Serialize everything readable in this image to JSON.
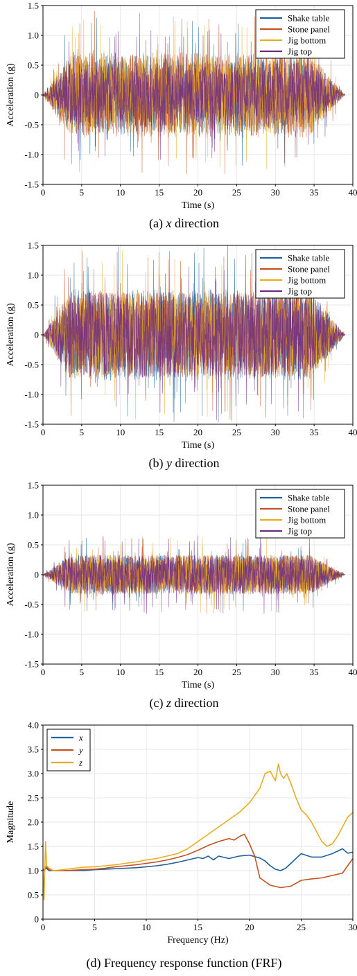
{
  "colors": {
    "shake_table": "#1f5f9a",
    "stone_panel": "#c4511f",
    "jig_bottom": "#e8ac22",
    "jig_top": "#6e2a82",
    "x": "#1f5f9a",
    "y": "#c4511f",
    "z": "#e8ac22",
    "grid": "#dedede"
  },
  "chart_data": [
    {
      "type": "line",
      "caption_prefix": "(a) ",
      "caption_var": "x",
      "caption_suffix": " direction",
      "xlabel": "Time (s)",
      "ylabel": "Acceleration (g)",
      "xlim": [
        0,
        40
      ],
      "ylim": [
        -1.5,
        1.5
      ],
      "xticks": [
        0,
        5,
        10,
        15,
        20,
        25,
        30,
        35,
        40
      ],
      "yticks": [
        -1.5,
        -1.0,
        -0.5,
        0,
        0.5,
        1.0,
        1.5
      ],
      "ytick_labels": [
        "-1.5",
        "-1.0",
        "-0.5",
        "0",
        "0.5",
        "1.0",
        "1.5"
      ],
      "grid": true,
      "legend_position": "top-right",
      "series": [
        {
          "name": "Shake table",
          "color_key": "shake_table",
          "amplitude_peak": 1.2
        },
        {
          "name": "Stone panel",
          "color_key": "stone_panel",
          "amplitude_peak": 1.3
        },
        {
          "name": "Jig bottom",
          "color_key": "jig_bottom",
          "amplitude_peak": 1.2
        },
        {
          "name": "Jig top",
          "color_key": "jig_top",
          "amplitude_peak": 1.0
        }
      ],
      "signal_duration_s": 39
    },
    {
      "type": "line",
      "caption_prefix": "(b) ",
      "caption_var": "y",
      "caption_suffix": " direction",
      "xlabel": "Time (s)",
      "ylabel": "Acceleration (g)",
      "xlim": [
        0,
        40
      ],
      "ylim": [
        -1.5,
        1.5
      ],
      "xticks": [
        0,
        5,
        10,
        15,
        20,
        25,
        30,
        35,
        40
      ],
      "yticks": [
        -1.5,
        -1.0,
        -0.5,
        0,
        0.5,
        1.0,
        1.5
      ],
      "ytick_labels": [
        "-1.5",
        "-1.0",
        "-0.5",
        "0",
        "0.5",
        "1.0",
        "1.5"
      ],
      "grid": true,
      "legend_position": "top-right",
      "series": [
        {
          "name": "Shake table",
          "color_key": "shake_table",
          "amplitude_peak": 1.4
        },
        {
          "name": "Stone panel",
          "color_key": "stone_panel",
          "amplitude_peak": 1.3
        },
        {
          "name": "Jig bottom",
          "color_key": "jig_bottom",
          "amplitude_peak": 1.3
        },
        {
          "name": "Jig top",
          "color_key": "jig_top",
          "amplitude_peak": 1.3
        }
      ],
      "signal_duration_s": 39
    },
    {
      "type": "line",
      "caption_prefix": "(c) ",
      "caption_var": "z",
      "caption_suffix": " direction",
      "xlabel": "Time (s)",
      "ylabel": "Acceleration (g)",
      "xlim": [
        0,
        40
      ],
      "ylim": [
        -1.5,
        1.5
      ],
      "xticks": [
        0,
        5,
        10,
        15,
        20,
        25,
        30,
        35,
        40
      ],
      "yticks": [
        -1.5,
        -1.0,
        -0.5,
        0,
        0.5,
        1.0,
        1.5
      ],
      "ytick_labels": [
        "-1.5",
        "-1.0",
        "-0.5",
        "0",
        "0.5",
        "1.0",
        "1.5"
      ],
      "grid": true,
      "legend_position": "top-right",
      "series": [
        {
          "name": "Shake table",
          "color_key": "shake_table",
          "amplitude_peak": 0.6
        },
        {
          "name": "Stone panel",
          "color_key": "stone_panel",
          "amplitude_peak": 0.6
        },
        {
          "name": "Jig bottom",
          "color_key": "jig_bottom",
          "amplitude_peak": 0.6
        },
        {
          "name": "Jig top",
          "color_key": "jig_top",
          "amplitude_peak": 0.6
        }
      ],
      "signal_duration_s": 39
    },
    {
      "type": "line",
      "caption_prefix": "(d) Frequency response function (FRF)",
      "caption_var": "",
      "caption_suffix": "",
      "xlabel": "Frequency (Hz)",
      "ylabel": "Magnitude",
      "xlim": [
        0,
        30
      ],
      "ylim": [
        0,
        4.0
      ],
      "xticks": [
        0,
        5,
        10,
        15,
        20,
        25,
        30
      ],
      "yticks": [
        0,
        0.5,
        1.0,
        1.5,
        2.0,
        2.5,
        3.0,
        3.5,
        4.0
      ],
      "ytick_labels": [
        "0",
        "0.5",
        "1.0",
        "1.5",
        "2.0",
        "2.5",
        "3.0",
        "3.5",
        "4.0"
      ],
      "grid": true,
      "legend_position": "top-left",
      "series": [
        {
          "name": "x",
          "color_key": "x",
          "x": [
            0,
            0.3,
            0.6,
            1,
            2,
            3,
            4,
            5,
            6,
            7,
            8,
            9,
            10,
            11,
            12,
            13,
            14,
            15,
            15.5,
            16,
            16.5,
            17,
            18,
            19,
            20,
            21,
            21.5,
            22,
            22.5,
            23,
            23.5,
            24,
            25,
            26,
            27,
            28,
            29,
            29.5,
            30
          ],
          "y": [
            1.0,
            1.05,
            1.0,
            1.0,
            1.0,
            1.0,
            1.0,
            1.02,
            1.03,
            1.04,
            1.05,
            1.06,
            1.08,
            1.1,
            1.13,
            1.17,
            1.22,
            1.27,
            1.25,
            1.3,
            1.22,
            1.3,
            1.25,
            1.3,
            1.32,
            1.26,
            1.2,
            1.1,
            1.03,
            1.0,
            1.05,
            1.15,
            1.35,
            1.28,
            1.28,
            1.35,
            1.45,
            1.36,
            1.38
          ]
        },
        {
          "name": "y",
          "color_key": "y",
          "x": [
            0,
            0.3,
            0.6,
            1,
            2,
            3,
            4,
            5,
            6,
            7,
            8,
            9,
            10,
            11,
            12,
            13,
            14,
            15,
            16,
            17,
            18,
            18.5,
            19,
            19.5,
            20,
            20.5,
            21,
            22,
            23,
            24,
            25,
            26,
            27,
            28,
            29,
            29.5,
            30
          ],
          "y": [
            1.0,
            1.08,
            1.02,
            1.0,
            1.0,
            1.01,
            1.02,
            1.03,
            1.05,
            1.08,
            1.1,
            1.12,
            1.15,
            1.18,
            1.22,
            1.27,
            1.33,
            1.42,
            1.52,
            1.6,
            1.66,
            1.63,
            1.7,
            1.75,
            1.55,
            1.3,
            0.85,
            0.7,
            0.65,
            0.68,
            0.8,
            0.83,
            0.85,
            0.9,
            0.95,
            1.1,
            1.25
          ]
        },
        {
          "name": "z",
          "color_key": "z",
          "x": [
            0,
            0.1,
            0.25,
            0.35,
            0.6,
            1,
            2,
            3,
            4,
            5,
            6,
            7,
            8,
            9,
            10,
            11,
            12,
            13,
            14,
            15,
            16,
            17,
            18,
            19,
            20,
            21,
            21.5,
            22,
            22.5,
            22.8,
            23,
            23.3,
            23.6,
            24,
            24.5,
            25,
            25.5,
            26,
            26.5,
            27,
            27.5,
            28,
            28.5,
            29,
            29.5,
            30
          ],
          "y": [
            1.0,
            0.4,
            1.6,
            1.1,
            1.05,
            1.0,
            1.02,
            1.05,
            1.07,
            1.08,
            1.1,
            1.12,
            1.15,
            1.18,
            1.22,
            1.25,
            1.3,
            1.35,
            1.45,
            1.6,
            1.75,
            1.9,
            2.05,
            2.2,
            2.4,
            2.7,
            3.0,
            3.05,
            2.85,
            3.2,
            3.0,
            2.9,
            3.0,
            2.8,
            2.5,
            2.25,
            2.15,
            2.0,
            1.8,
            1.6,
            1.5,
            1.55,
            1.7,
            1.9,
            2.1,
            2.2
          ]
        }
      ]
    }
  ]
}
